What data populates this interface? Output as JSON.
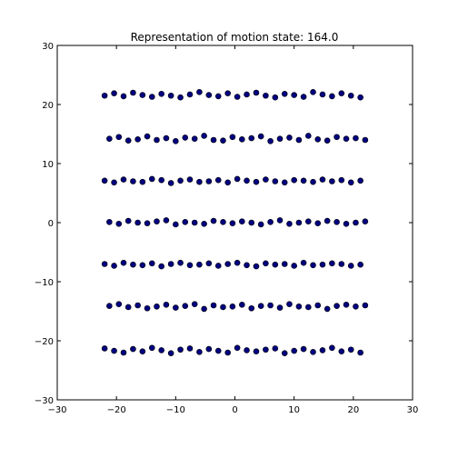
{
  "chart_data": {
    "type": "scatter",
    "title": "Representation of motion state: 164.0",
    "xlabel": "",
    "ylabel": "",
    "xlim": [
      -30,
      30
    ],
    "ylim": [
      -30,
      30
    ],
    "grid": false,
    "marker_color": "#000080",
    "edge_color": "#000000",
    "x_ticks": [
      {
        "value": -30,
        "label": "−30"
      },
      {
        "value": -20,
        "label": "−20"
      },
      {
        "value": -10,
        "label": "−10"
      },
      {
        "value": 0,
        "label": "0"
      },
      {
        "value": 10,
        "label": "10"
      },
      {
        "value": 20,
        "label": "20"
      },
      {
        "value": 30,
        "label": "30"
      }
    ],
    "y_ticks": [
      {
        "value": -30,
        "label": "−30"
      },
      {
        "value": -20,
        "label": "−20"
      },
      {
        "value": -10,
        "label": "−10"
      },
      {
        "value": 0,
        "label": "0"
      },
      {
        "value": 10,
        "label": "10"
      },
      {
        "value": 20,
        "label": "20"
      },
      {
        "value": 30,
        "label": "30"
      }
    ],
    "series": [
      {
        "x": [
          -22.0,
          -20.4,
          -18.8,
          -17.2,
          -15.6,
          -14.0,
          -12.4,
          -10.8,
          -9.2,
          -7.6,
          -6.0,
          -4.4,
          -2.8,
          -1.2,
          0.4,
          2.0,
          3.6,
          5.2,
          6.8,
          8.4,
          10.0,
          11.6,
          13.2,
          14.8,
          16.4,
          18.0,
          19.6,
          21.2,
          -21.2,
          -19.6,
          -18.0,
          -16.4,
          -14.8,
          -13.2,
          -11.6,
          -10.0,
          -8.4,
          -6.8,
          -5.2,
          -3.6,
          -2.0,
          -0.4,
          1.2,
          2.8,
          4.4,
          6.0,
          7.6,
          9.2,
          10.8,
          12.4,
          14.0,
          15.6,
          17.2,
          18.8,
          20.4,
          22.0,
          -22.0,
          -20.4,
          -18.8,
          -17.2,
          -15.6,
          -14.0,
          -12.4,
          -10.8,
          -9.2,
          -7.6,
          -6.0,
          -4.4,
          -2.8,
          -1.2,
          0.4,
          2.0,
          3.6,
          5.2,
          6.8,
          8.4,
          10.0,
          11.6,
          13.2,
          14.8,
          16.4,
          18.0,
          19.6,
          21.2,
          -21.2,
          -19.6,
          -18.0,
          -16.4,
          -14.8,
          -13.2,
          -11.6,
          -10.0,
          -8.4,
          -6.8,
          -5.2,
          -3.6,
          -2.0,
          -0.4,
          1.2,
          2.8,
          4.4,
          6.0,
          7.6,
          9.2,
          10.8,
          12.4,
          14.0,
          15.6,
          17.2,
          18.8,
          20.4,
          22.0,
          -22.0,
          -20.4,
          -18.8,
          -17.2,
          -15.6,
          -14.0,
          -12.4,
          -10.8,
          -9.2,
          -7.6,
          -6.0,
          -4.4,
          -2.8,
          -1.2,
          0.4,
          2.0,
          3.6,
          5.2,
          6.8,
          8.4,
          10.0,
          11.6,
          13.2,
          14.8,
          16.4,
          18.0,
          19.6,
          21.2,
          -21.2,
          -19.6,
          -18.0,
          -16.4,
          -14.8,
          -13.2,
          -11.6,
          -10.0,
          -8.4,
          -6.8,
          -5.2,
          -3.6,
          -2.0,
          -0.4,
          1.2,
          2.8,
          4.4,
          6.0,
          7.6,
          9.2,
          10.8,
          12.4,
          14.0,
          15.6,
          17.2,
          18.8,
          20.4,
          22.0,
          -22.0,
          -20.4,
          -18.8,
          -17.2,
          -15.6,
          -14.0,
          -12.4,
          -10.8,
          -9.2,
          -7.6,
          -6.0,
          -4.4,
          -2.8,
          -1.2,
          0.4,
          2.0,
          3.6,
          5.2,
          6.8,
          8.4,
          10.0,
          11.6,
          13.2,
          14.8,
          16.4,
          18.0,
          19.6,
          21.2
        ],
        "y": [
          21.5,
          21.9,
          21.4,
          22.0,
          21.6,
          21.3,
          21.8,
          21.5,
          21.2,
          21.7,
          22.1,
          21.6,
          21.4,
          21.9,
          21.3,
          21.7,
          22.0,
          21.5,
          21.2,
          21.8,
          21.6,
          21.3,
          22.1,
          21.7,
          21.4,
          21.9,
          21.5,
          21.2,
          14.2,
          14.5,
          13.9,
          14.1,
          14.6,
          14.0,
          14.3,
          13.8,
          14.4,
          14.2,
          14.7,
          14.0,
          13.9,
          14.5,
          14.1,
          14.3,
          14.6,
          13.8,
          14.2,
          14.4,
          14.0,
          14.7,
          14.1,
          13.9,
          14.5,
          14.2,
          14.3,
          14.0,
          7.1,
          6.8,
          7.3,
          7.0,
          6.9,
          7.4,
          7.2,
          6.7,
          7.1,
          7.3,
          6.9,
          7.0,
          7.2,
          6.8,
          7.4,
          7.1,
          6.9,
          7.3,
          7.0,
          6.8,
          7.2,
          7.1,
          6.9,
          7.3,
          7.0,
          7.2,
          6.8,
          7.1,
          0.1,
          -0.2,
          0.3,
          0.0,
          -0.1,
          0.2,
          0.4,
          -0.3,
          0.1,
          0.0,
          -0.2,
          0.3,
          0.1,
          -0.1,
          0.2,
          0.0,
          -0.3,
          0.1,
          0.4,
          -0.2,
          0.0,
          0.2,
          -0.1,
          0.3,
          0.1,
          -0.2,
          0.0,
          0.2,
          -7.0,
          -7.3,
          -6.8,
          -7.1,
          -7.2,
          -6.9,
          -7.4,
          -7.0,
          -6.8,
          -7.2,
          -7.1,
          -6.9,
          -7.3,
          -7.0,
          -6.8,
          -7.2,
          -7.4,
          -6.9,
          -7.1,
          -7.0,
          -7.3,
          -6.8,
          -7.2,
          -7.1,
          -6.9,
          -7.0,
          -7.3,
          -7.1,
          -14.1,
          -13.8,
          -14.3,
          -14.0,
          -14.5,
          -14.2,
          -13.9,
          -14.4,
          -14.1,
          -13.8,
          -14.6,
          -14.0,
          -14.3,
          -14.2,
          -13.9,
          -14.5,
          -14.1,
          -14.0,
          -14.4,
          -13.8,
          -14.2,
          -14.3,
          -14.0,
          -14.6,
          -14.1,
          -13.9,
          -14.2,
          -14.0,
          -21.3,
          -21.7,
          -22.0,
          -21.4,
          -21.8,
          -21.2,
          -21.6,
          -22.1,
          -21.5,
          -21.3,
          -21.9,
          -21.4,
          -21.7,
          -22.0,
          -21.2,
          -21.6,
          -21.8,
          -21.5,
          -21.3,
          -22.1,
          -21.7,
          -21.4,
          -21.9,
          -21.6,
          -21.2,
          -21.8,
          -21.5,
          -22.0
        ]
      }
    ]
  }
}
